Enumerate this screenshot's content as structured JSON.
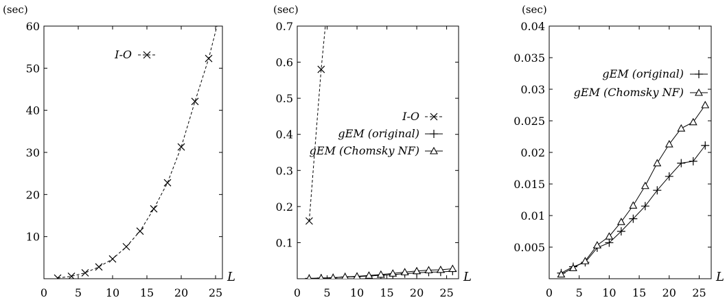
{
  "chart_data": [
    {
      "type": "line",
      "title": "",
      "ylabel": "(sec)",
      "xlabel": "L",
      "xlim": [
        0,
        26
      ],
      "ylim": [
        0,
        60
      ],
      "x_ticks": [
        "0",
        "5",
        "10",
        "15",
        "20",
        "25"
      ],
      "y_ticks": [
        "10",
        "20",
        "30",
        "40",
        "50",
        "60"
      ],
      "legend_position": "top-center",
      "series": [
        {
          "name": "I-O",
          "marker": "x",
          "line": "dashed",
          "x": [
            2,
            4,
            6,
            8,
            10,
            12,
            14,
            16,
            18,
            20,
            22,
            24
          ],
          "y": [
            0.16,
            0.58,
            1.4,
            2.8,
            4.7,
            7.6,
            11.3,
            16.6,
            22.8,
            31.3,
            42.1,
            52.3
          ],
          "extend_to": [
            25.2,
            60
          ]
        }
      ]
    },
    {
      "type": "line",
      "title": "",
      "ylabel": "(sec)",
      "xlabel": "L",
      "xlim": [
        0,
        27
      ],
      "ylim": [
        0,
        0.7
      ],
      "x_ticks": [
        "0",
        "5",
        "10",
        "15",
        "20",
        "25"
      ],
      "y_ticks": [
        "0.1",
        "0.2",
        "0.3",
        "0.4",
        "0.5",
        "0.6",
        "0.7"
      ],
      "legend_position": "center-right",
      "series": [
        {
          "name": "I-O",
          "marker": "x",
          "line": "dashed",
          "x": [
            2,
            4
          ],
          "y": [
            0.16,
            0.58
          ],
          "extend_to": [
            4.7,
            0.7
          ]
        },
        {
          "name": "gEM (original)",
          "marker": "plus",
          "line": "solid",
          "x": [
            2,
            4,
            6,
            8,
            10,
            12,
            14,
            16,
            18,
            20,
            22,
            24,
            26
          ],
          "y": [
            0.0009,
            0.0019,
            0.0026,
            0.0049,
            0.0057,
            0.0075,
            0.0095,
            0.0115,
            0.014,
            0.0162,
            0.0183,
            0.0186,
            0.0211
          ]
        },
        {
          "name": "gEM (Chomsky NF)",
          "marker": "triangle",
          "line": "solid",
          "x": [
            2,
            4,
            6,
            8,
            10,
            12,
            14,
            16,
            18,
            20,
            22,
            24,
            26
          ],
          "y": [
            0.0007,
            0.0017,
            0.0028,
            0.0053,
            0.0067,
            0.009,
            0.0116,
            0.0147,
            0.0183,
            0.0213,
            0.0238,
            0.0248,
            0.0275
          ]
        }
      ]
    },
    {
      "type": "line",
      "title": "",
      "ylabel": "(sec)",
      "xlabel": "L",
      "xlim": [
        0,
        27
      ],
      "ylim": [
        0,
        0.04
      ],
      "x_ticks": [
        "0",
        "5",
        "10",
        "15",
        "20",
        "25"
      ],
      "y_ticks": [
        "0.005",
        "0.01",
        "0.015",
        "0.02",
        "0.025",
        "0.03",
        "0.035",
        "0.04"
      ],
      "legend_position": "top-right",
      "series": [
        {
          "name": "gEM (original)",
          "marker": "plus",
          "line": "solid",
          "x": [
            2,
            4,
            6,
            8,
            10,
            12,
            14,
            16,
            18,
            20,
            22,
            24,
            26
          ],
          "y": [
            0.0009,
            0.0019,
            0.0026,
            0.0049,
            0.0057,
            0.0075,
            0.0095,
            0.0115,
            0.014,
            0.0162,
            0.0183,
            0.0186,
            0.0211
          ]
        },
        {
          "name": "gEM (Chomsky NF)",
          "marker": "triangle",
          "line": "solid",
          "x": [
            2,
            4,
            6,
            8,
            10,
            12,
            14,
            16,
            18,
            20,
            22,
            24,
            26
          ],
          "y": [
            0.0007,
            0.0017,
            0.0028,
            0.0053,
            0.0067,
            0.009,
            0.0116,
            0.0147,
            0.0183,
            0.0213,
            0.0238,
            0.0248,
            0.0275
          ]
        }
      ]
    }
  ]
}
